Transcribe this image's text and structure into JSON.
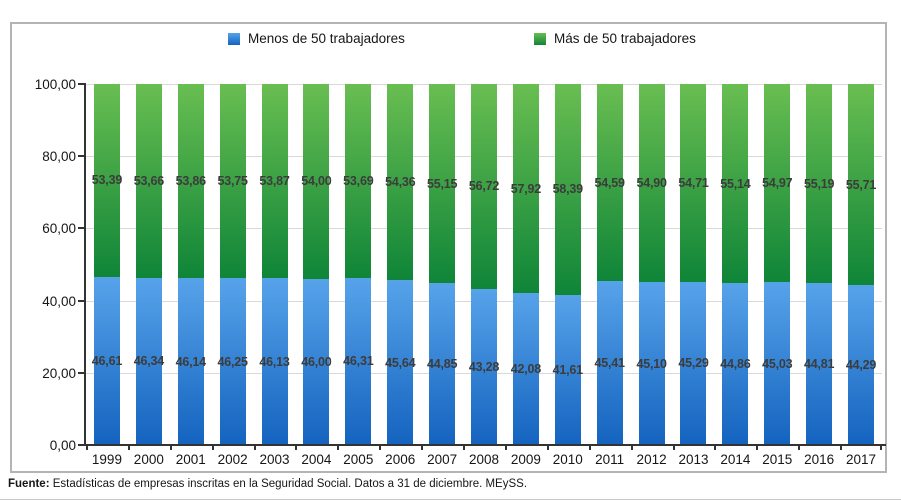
{
  "legend": {
    "items": [
      {
        "label": "Menos de 50 trabajadores",
        "color": "#2E7AD2"
      },
      {
        "label": "Más de 50 trabajadores",
        "color": "#2F9A3C"
      }
    ]
  },
  "footer": {
    "label": "Fuente:",
    "text": " Estadísticas de empresas inscritas en la Seguridad Social. Datos a 31 de diciembre. MEySS."
  },
  "chart_data": {
    "type": "bar",
    "stacked": true,
    "orientation": "vertical",
    "title": "",
    "xlabel": "",
    "ylabel": "",
    "categories": [
      "1999",
      "2000",
      "2001",
      "2002",
      "2003",
      "2004",
      "2005",
      "2006",
      "2007",
      "2008",
      "2009",
      "2010",
      "2011",
      "2012",
      "2013",
      "2014",
      "2015",
      "2016",
      "2017"
    ],
    "series": [
      {
        "name": "Menos de 50 trabajadores",
        "color_top": "#57A3EA",
        "color_bottom": "#1463BF",
        "values": [
          46.61,
          46.34,
          46.14,
          46.25,
          46.13,
          46.0,
          46.31,
          45.64,
          44.85,
          43.28,
          42.08,
          41.61,
          45.41,
          45.1,
          45.29,
          44.86,
          45.03,
          44.81,
          44.29
        ]
      },
      {
        "name": "Más de 50 trabajadores",
        "color_top": "#69BE51",
        "color_bottom": "#0F8538",
        "values": [
          53.39,
          53.66,
          53.86,
          53.75,
          53.87,
          54.0,
          53.69,
          54.36,
          55.15,
          56.72,
          57.92,
          58.39,
          54.59,
          54.9,
          54.71,
          55.14,
          54.97,
          55.19,
          55.71
        ]
      }
    ],
    "ylim": [
      0,
      100
    ],
    "yticks": [
      0,
      20,
      40,
      60,
      80,
      100
    ],
    "ytick_labels": [
      "0,00",
      "20,00",
      "40,00",
      "60,00",
      "80,00",
      "100,00"
    ],
    "decimal_separator": ",",
    "grid": true,
    "legend_position": "top",
    "value_labels": "at-segment-centers"
  }
}
